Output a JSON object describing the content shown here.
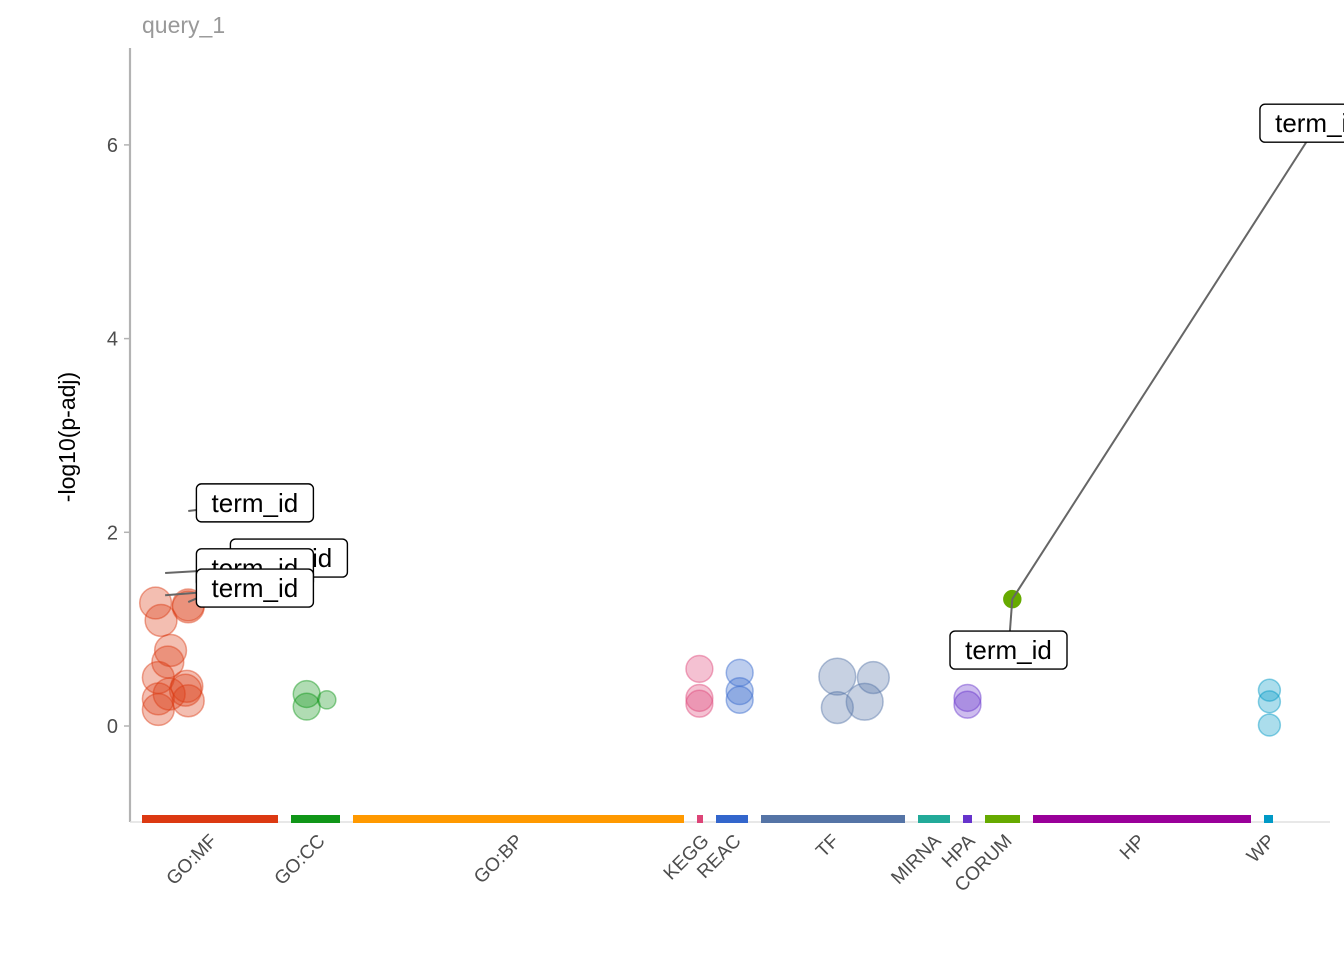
{
  "chart_data": {
    "type": "scatter",
    "title": "query_1",
    "xlabel": "",
    "ylabel": "-log10(p-adj)",
    "ylim": [
      -1,
      7
    ],
    "yticks": [
      0,
      2,
      4,
      6
    ],
    "grid": false,
    "legend": "none",
    "sources": [
      {
        "name": "GO:MF",
        "color": "#dc3912"
      },
      {
        "name": "GO:CC",
        "color": "#109618"
      },
      {
        "name": "GO:BP",
        "color": "#ff9900"
      },
      {
        "name": "KEGG",
        "color": "#dd4477"
      },
      {
        "name": "REAC",
        "color": "#3366cc"
      },
      {
        "name": "TF",
        "color": "#5574a6"
      },
      {
        "name": "MIRNA",
        "color": "#22aa99"
      },
      {
        "name": "HPA",
        "color": "#6633cc"
      },
      {
        "name": "CORUM",
        "color": "#66aa00"
      },
      {
        "name": "HP",
        "color": "#990099"
      },
      {
        "name": "WP",
        "color": "#0099c6"
      }
    ],
    "points": [
      {
        "source": "GO:MF",
        "pos": 0.1,
        "y": 1.27,
        "size": 2,
        "highlighted": false
      },
      {
        "source": "GO:MF",
        "pos": 0.14,
        "y": 1.09,
        "size": 2,
        "highlighted": false
      },
      {
        "source": "GO:MF",
        "pos": 0.21,
        "y": 0.78,
        "size": 2,
        "highlighted": false
      },
      {
        "source": "GO:MF",
        "pos": 0.19,
        "y": 0.66,
        "size": 2,
        "highlighted": false
      },
      {
        "source": "GO:MF",
        "pos": 0.12,
        "y": 0.5,
        "size": 2,
        "highlighted": false
      },
      {
        "source": "GO:MF",
        "pos": 0.33,
        "y": 0.41,
        "size": 2,
        "highlighted": false
      },
      {
        "source": "GO:MF",
        "pos": 0.32,
        "y": 0.37,
        "size": 2,
        "highlighted": false
      },
      {
        "source": "GO:MF",
        "pos": 0.2,
        "y": 0.33,
        "size": 2,
        "highlighted": false
      },
      {
        "source": "GO:MF",
        "pos": 0.12,
        "y": 0.28,
        "size": 2,
        "highlighted": false
      },
      {
        "source": "GO:MF",
        "pos": 0.34,
        "y": 0.26,
        "size": 2,
        "highlighted": false
      },
      {
        "source": "GO:MF",
        "pos": 0.12,
        "y": 0.17,
        "size": 2,
        "highlighted": false
      },
      {
        "source": "GO:MF",
        "pos": 0.34,
        "y": 1.25,
        "size": 2,
        "highlighted": false
      },
      {
        "source": "GO:MF",
        "pos": 0.34,
        "y": 1.23,
        "size": 2,
        "highlighted": false
      },
      {
        "source": "GO:CC",
        "pos": 0.32,
        "y": 0.33,
        "size": 1.6,
        "highlighted": false
      },
      {
        "source": "GO:CC",
        "pos": 0.32,
        "y": 0.2,
        "size": 1.6,
        "highlighted": false
      },
      {
        "source": "GO:CC",
        "pos": 0.73,
        "y": 0.27,
        "size": 0.9,
        "highlighted": false
      },
      {
        "source": "KEGG",
        "pos": 0.4,
        "y": 0.59,
        "size": 1.6,
        "highlighted": false
      },
      {
        "source": "KEGG",
        "pos": 0.4,
        "y": 0.29,
        "size": 1.6,
        "highlighted": false
      },
      {
        "source": "KEGG",
        "pos": 0.4,
        "y": 0.23,
        "size": 1.6,
        "highlighted": false
      },
      {
        "source": "REAC",
        "pos": 0.74,
        "y": 0.55,
        "size": 1.6,
        "highlighted": false
      },
      {
        "source": "REAC",
        "pos": 0.74,
        "y": 0.36,
        "size": 1.6,
        "highlighted": false
      },
      {
        "source": "REAC",
        "pos": 0.74,
        "y": 0.27,
        "size": 1.6,
        "highlighted": false
      },
      {
        "source": "TF",
        "pos": 0.53,
        "y": 0.51,
        "size": 2.4,
        "highlighted": false
      },
      {
        "source": "TF",
        "pos": 0.78,
        "y": 0.5,
        "size": 2.0,
        "highlighted": false
      },
      {
        "source": "TF",
        "pos": 0.72,
        "y": 0.25,
        "size": 2.4,
        "highlighted": false
      },
      {
        "source": "TF",
        "pos": 0.53,
        "y": 0.19,
        "size": 2.0,
        "highlighted": false
      },
      {
        "source": "HPA",
        "pos": 0.5,
        "y": 0.29,
        "size": 1.6,
        "highlighted": false
      },
      {
        "source": "HPA",
        "pos": 0.5,
        "y": 0.22,
        "size": 1.6,
        "highlighted": false
      },
      {
        "source": "CORUM",
        "pos": 0.78,
        "y": 1.31,
        "size": 0.8,
        "highlighted": true
      },
      {
        "source": "WP",
        "pos": 0.6,
        "y": 0.37,
        "size": 1.2,
        "highlighted": false
      },
      {
        "source": "WP",
        "pos": 0.6,
        "y": 0.25,
        "size": 1.2,
        "highlighted": false
      },
      {
        "source": "WP",
        "pos": 0.6,
        "y": 0.01,
        "size": 1.2,
        "highlighted": false
      }
    ],
    "annotations": [
      {
        "text": "term_id",
        "label_source": "GO:MF",
        "label_pos": 0.4,
        "label_y": 2.5,
        "target_source": "GO:MF",
        "target_pos": 0.34,
        "target_y": 2.22
      },
      {
        "text": "term_id",
        "label_source": "GO:MF",
        "label_pos": 0.65,
        "label_y": 1.93,
        "target_source": "GO:MF",
        "target_pos": 0.34,
        "target_y": 1.28
      },
      {
        "text": "term_id",
        "label_source": "GO:MF",
        "label_pos": 0.4,
        "label_y": 1.83,
        "target_source": "GO:MF",
        "target_pos": 0.17,
        "target_y": 1.58
      },
      {
        "text": "term_id",
        "label_source": "GO:MF",
        "label_pos": 0.4,
        "label_y": 1.62,
        "target_source": "GO:MF",
        "target_pos": 0.17,
        "target_y": 1.35
      },
      {
        "text": "term_id",
        "label_source": "CORUM",
        "label_pos": -1.0,
        "label_y": 0.98,
        "target_source": "CORUM",
        "target_pos": 0.78,
        "target_y": 1.31
      },
      {
        "text": "term_id",
        "label_source": "WP",
        "label_pos": -0.45,
        "label_y": 6.42,
        "target_source": "CORUM",
        "target_pos": 0.78,
        "target_y": 1.31
      }
    ]
  }
}
